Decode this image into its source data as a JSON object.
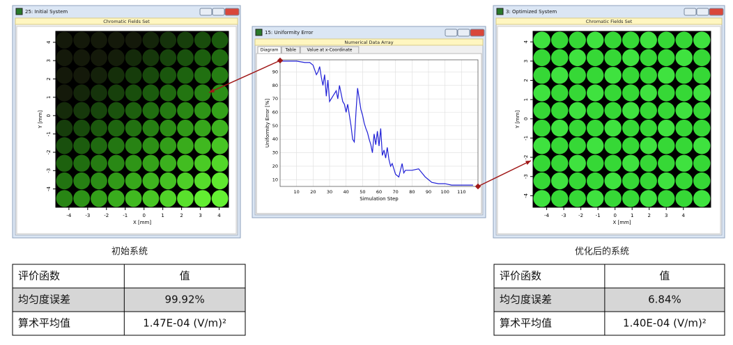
{
  "windows": [
    {
      "title": "25: Initial System",
      "subtitle": "Chromatic Fields Set",
      "xlabel": "X [mm]",
      "ylabel": "Y [mm]",
      "xlim": [
        -4.7,
        4.5
      ],
      "ylim": [
        -5,
        4.6
      ],
      "xticks": [
        -4,
        -3,
        -2,
        -1,
        0,
        1,
        2,
        3,
        4
      ],
      "yticks": [
        -4,
        -3,
        -2,
        -1,
        0,
        1,
        2,
        3,
        4
      ],
      "caption": "初始系统",
      "table": {
        "header": [
          "评价函数",
          "值"
        ],
        "rows": [
          [
            "均匀度误差",
            "99.92%"
          ],
          [
            "算术平均值",
            "1.47E-04 (V/m)²"
          ]
        ]
      }
    },
    {
      "title": "3: Optimized System",
      "subtitle": "Chromatic Fields Set",
      "xlabel": "X [mm]",
      "ylabel": "Y [mm]",
      "xlim": [
        -4.8,
        5.6
      ],
      "ylim": [
        -4.6,
        4.55
      ],
      "xticks": [
        -4,
        -3,
        -2,
        -1,
        0,
        1,
        2,
        3,
        4
      ],
      "yticks": [
        -4,
        -3,
        -2,
        -1,
        0,
        1,
        2,
        3,
        4
      ],
      "caption": "优化后的系统",
      "table": {
        "header": [
          "评价函数",
          "值"
        ],
        "rows": [
          [
            "均匀度误差",
            "6.84%"
          ],
          [
            "算术平均值",
            "1.40E-04 (V/m)²"
          ]
        ]
      }
    }
  ],
  "chart_window": {
    "title": "15: Uniformity Error",
    "subtitle": "Numerical Data Array",
    "tabs": [
      "Diagram",
      "Table",
      "Value at x-Coordinate"
    ]
  },
  "chart_data": {
    "type": "line",
    "xlabel": "Simulation Step",
    "ylabel": "Uniformity Error [%]",
    "color": "#1f1fd6",
    "grid": true,
    "x": [
      1,
      5,
      10,
      15,
      18,
      20,
      22,
      23,
      24,
      25,
      26,
      27,
      28,
      29,
      30,
      32,
      34,
      35,
      36,
      38,
      39,
      40,
      41,
      42,
      43,
      44,
      45,
      46,
      47,
      48,
      49,
      50,
      51,
      52,
      53,
      54,
      55,
      56,
      57,
      58,
      59,
      60,
      61,
      62,
      63,
      64,
      65,
      66,
      67,
      68,
      70,
      72,
      74,
      75,
      76,
      80,
      84,
      88,
      92,
      96,
      100,
      104,
      108,
      112,
      117
    ],
    "values": [
      98,
      98,
      98,
      97,
      97,
      95,
      88,
      90,
      94,
      86,
      80,
      88,
      72,
      84,
      68,
      72,
      76,
      70,
      80,
      68,
      66,
      60,
      66,
      58,
      50,
      40,
      38,
      60,
      78,
      70,
      62,
      58,
      52,
      48,
      45,
      40,
      36,
      30,
      44,
      36,
      46,
      35,
      48,
      28,
      32,
      26,
      34,
      25,
      20,
      22,
      14,
      12,
      22,
      15,
      17,
      17,
      18,
      12,
      8,
      7,
      7,
      6,
      6,
      6,
      6
    ],
    "xlim": [
      0,
      120
    ],
    "ylim": [
      5,
      99
    ],
    "xticks": [
      10,
      20,
      30,
      40,
      50,
      60,
      70,
      80,
      90,
      100,
      110
    ],
    "yticks": [
      10,
      20,
      30,
      40,
      50,
      60,
      70,
      80,
      90
    ]
  }
}
